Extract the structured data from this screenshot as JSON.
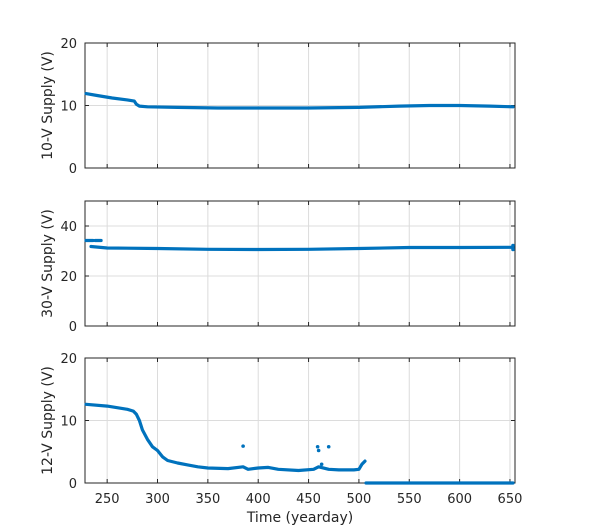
{
  "figure": {
    "xlabel": "Time (yearday)"
  },
  "chart_data": [
    {
      "type": "line",
      "ylabel": "10-V Supply (V)",
      "xlim": [
        228,
        655
      ],
      "ylim": [
        0,
        20
      ],
      "xticks": [
        250,
        300,
        350,
        400,
        450,
        500,
        550,
        600,
        650
      ],
      "yticks": [
        0,
        10,
        20
      ],
      "grid": true,
      "color": "#0072BD",
      "series": [
        {
          "segments": [
            [
              [
                229,
                11.9
              ],
              [
                240,
                11.6
              ],
              [
                255,
                11.2
              ],
              [
                270,
                10.9
              ],
              [
                277,
                10.7
              ],
              [
                279,
                10.2
              ],
              [
                282,
                9.9
              ],
              [
                290,
                9.8
              ],
              [
                320,
                9.7
              ],
              [
                360,
                9.6
              ],
              [
                400,
                9.6
              ],
              [
                450,
                9.6
              ],
              [
                500,
                9.7
              ],
              [
                540,
                9.9
              ],
              [
                570,
                10.0
              ],
              [
                600,
                10.0
              ],
              [
                630,
                9.9
              ],
              [
                653,
                9.8
              ]
            ]
          ],
          "points": []
        }
      ]
    },
    {
      "type": "line",
      "ylabel": "30-V Supply (V)",
      "xlim": [
        228,
        655
      ],
      "ylim": [
        0,
        50
      ],
      "xticks": [
        250,
        300,
        350,
        400,
        450,
        500,
        550,
        600,
        650
      ],
      "yticks": [
        0,
        20,
        40
      ],
      "grid": true,
      "color": "#0072BD",
      "series": [
        {
          "segments": [
            [
              [
                229,
                34.2
              ],
              [
                236,
                34.2
              ]
            ],
            [
              [
                238,
                34.2
              ],
              [
                244,
                34.2
              ]
            ],
            [
              [
                234,
                31.8
              ],
              [
                250,
                31.2
              ],
              [
                300,
                31.0
              ],
              [
                350,
                30.7
              ],
              [
                400,
                30.6
              ],
              [
                450,
                30.7
              ],
              [
                500,
                31.0
              ],
              [
                550,
                31.4
              ],
              [
                600,
                31.4
              ],
              [
                653,
                31.5
              ]
            ]
          ],
          "points": [
            [
              653,
              30.6
            ],
            [
              653,
              32.2
            ]
          ]
        }
      ]
    },
    {
      "type": "line",
      "ylabel": "12-V Supply (V)",
      "xlim": [
        228,
        655
      ],
      "ylim": [
        0,
        20
      ],
      "xticks": [
        250,
        300,
        350,
        400,
        450,
        500,
        550,
        600,
        650
      ],
      "yticks": [
        0,
        10,
        20
      ],
      "grid": true,
      "color": "#0072BD",
      "series": [
        {
          "segments": [
            [
              [
                229,
                12.6
              ],
              [
                250,
                12.3
              ],
              [
                270,
                11.8
              ],
              [
                276,
                11.5
              ],
              [
                279,
                11.0
              ],
              [
                282,
                10.0
              ],
              [
                285,
                8.5
              ],
              [
                290,
                7.0
              ],
              [
                295,
                5.8
              ],
              [
                300,
                5.2
              ],
              [
                305,
                4.2
              ],
              [
                310,
                3.6
              ],
              [
                320,
                3.2
              ],
              [
                330,
                2.9
              ],
              [
                340,
                2.6
              ],
              [
                350,
                2.4
              ],
              [
                370,
                2.3
              ],
              [
                385,
                2.6
              ],
              [
                390,
                2.2
              ],
              [
                400,
                2.4
              ],
              [
                410,
                2.5
              ],
              [
                420,
                2.2
              ],
              [
                440,
                2.0
              ],
              [
                455,
                2.2
              ],
              [
                460,
                2.6
              ],
              [
                470,
                2.2
              ],
              [
                480,
                2.1
              ],
              [
                495,
                2.1
              ],
              [
                500,
                2.2
              ],
              [
                503,
                3.0
              ],
              [
                506,
                3.5
              ]
            ],
            [
              [
                507,
                0.0
              ],
              [
                653,
                0.0
              ]
            ]
          ],
          "points": [
            [
              385,
              5.9
            ],
            [
              459,
              5.8
            ],
            [
              460,
              5.2
            ],
            [
              470,
              5.8
            ],
            [
              463,
              3.0
            ]
          ]
        }
      ]
    }
  ]
}
